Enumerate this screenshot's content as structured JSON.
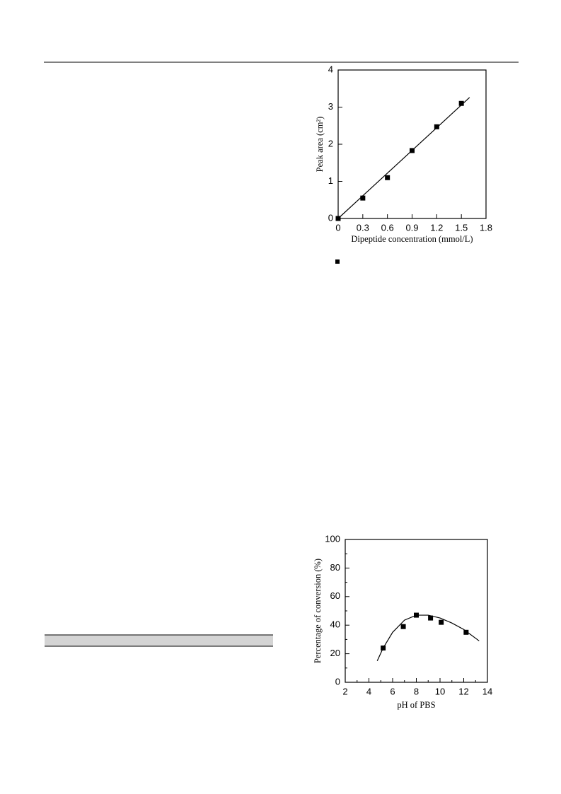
{
  "chart_data": [
    {
      "type": "scatter",
      "x_label": "Dipeptide concentration (mmol/L)",
      "y_label": "Peak area (cm²)",
      "xlim": [
        0,
        1.8
      ],
      "xticks": [
        0,
        0.3,
        0.6,
        0.9,
        1.2,
        1.5,
        1.8
      ],
      "ylim": [
        0,
        4
      ],
      "yticks": [
        0,
        1,
        2,
        3,
        4
      ],
      "series": [
        {
          "type": "scatter",
          "color": "#000000",
          "x": [
            0,
            0.3,
            0.6,
            0.9,
            1.2,
            1.5
          ],
          "values": [
            0,
            0.55,
            1.1,
            1.83,
            2.47,
            3.1
          ]
        },
        {
          "type": "line",
          "color": "#000000",
          "x": [
            0,
            1.6
          ],
          "values": [
            0,
            3.26
          ]
        }
      ]
    },
    {
      "type": "scatter",
      "x_label": "pH of PBS",
      "y_label": "Percentage of conversion (%)",
      "xlim": [
        2,
        14
      ],
      "xticks": [
        2,
        4,
        6,
        8,
        10,
        12,
        14
      ],
      "xminorticks": [
        3,
        5,
        7,
        9,
        11,
        13
      ],
      "ylim": [
        0,
        100
      ],
      "yticks": [
        0,
        20,
        40,
        60,
        80,
        100
      ],
      "yminorticks": [
        10,
        30,
        50,
        70,
        90
      ],
      "series": [
        {
          "type": "scatter",
          "color": "#000000",
          "x": [
            5.2,
            6.9,
            8,
            9.2,
            10.1,
            12.2
          ],
          "values": [
            24,
            39,
            47,
            45,
            42,
            35
          ]
        },
        {
          "type": "line",
          "color": "#000000",
          "x": [
            4.7,
            5.2,
            6,
            7,
            8,
            9,
            10,
            11,
            12,
            13.3
          ],
          "values": [
            15,
            24,
            35,
            43.5,
            47,
            47,
            45,
            41.5,
            37,
            29
          ]
        }
      ]
    }
  ]
}
